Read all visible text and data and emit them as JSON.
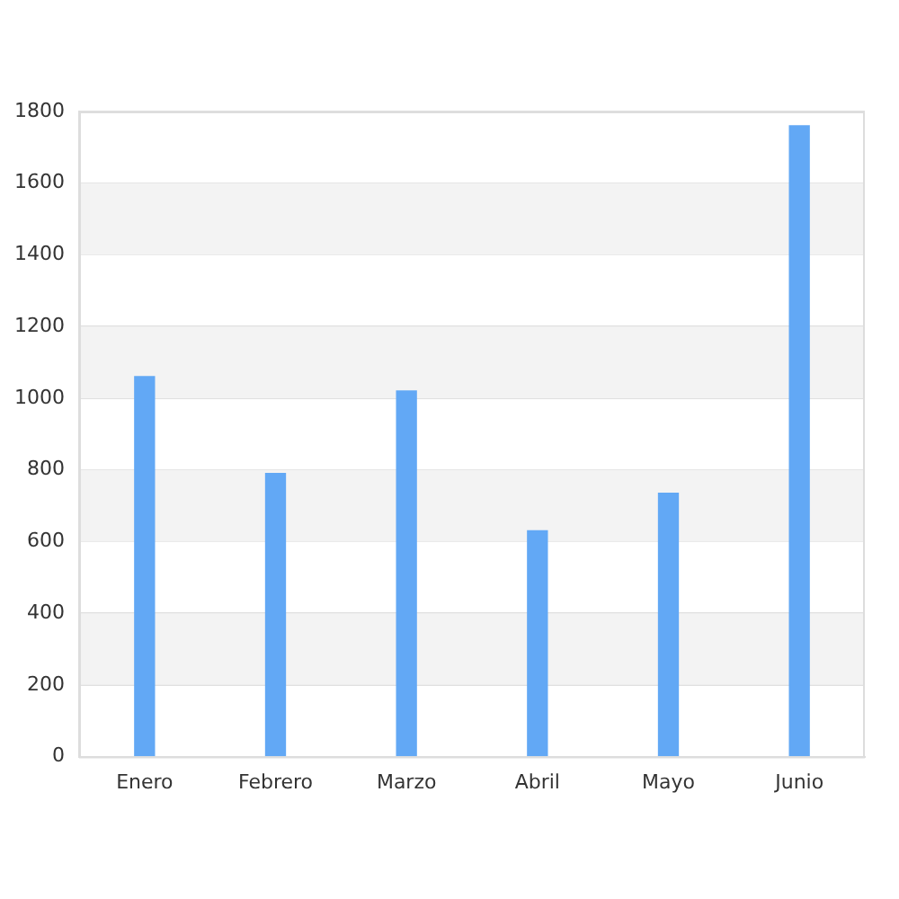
{
  "chart_data": {
    "type": "bar",
    "categories": [
      "Enero",
      "Febrero",
      "Marzo",
      "Abril",
      "Mayo",
      "Junio"
    ],
    "values": [
      1060,
      790,
      1020,
      630,
      735,
      1760
    ],
    "color": "#62a8f5",
    "ylim": [
      0,
      1800
    ],
    "yticks": [
      0,
      200,
      400,
      600,
      800,
      1000,
      1200,
      1400,
      1600,
      1800
    ],
    "grid": "y",
    "legend": false
  }
}
